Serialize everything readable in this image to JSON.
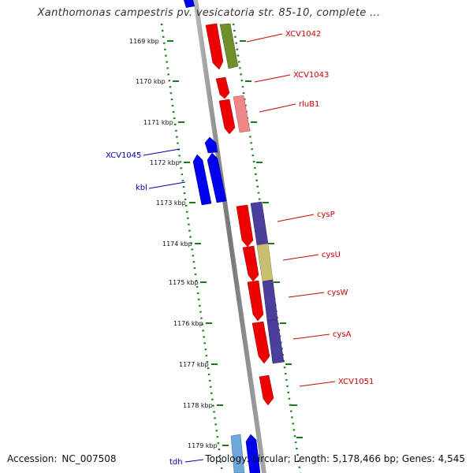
{
  "title": "Xanthomonas campestris pv. vesicatoria str. 85-10, complete ...",
  "footer": {
    "accession_key": "Accession:",
    "accession_value": "NC_007508",
    "topology_text": "Topology: circular; Length: 5,178,466 bp; Genes: 4,545"
  },
  "colors": {
    "forward_gene": "#ff0000",
    "reverse_gene": "#0000ff",
    "forward_label": "#cc0000",
    "reverse_label": "#0000aa",
    "axis": "#888888",
    "ticks": "#1a7a1a",
    "olive": "#6f8f2a",
    "pink": "#ee8888",
    "purple": "#4a3f9a",
    "khaki": "#c8c070"
  },
  "ticks": [
    "1169 kbp",
    "1170 kbp",
    "1171 kbp",
    "1172 kbp",
    "1173 kbp",
    "1174 kbp",
    "1175 kbp",
    "1176 kbp",
    "1177 kbp",
    "1178 kbp",
    "1179 kbp"
  ],
  "labels": [
    {
      "text": "XCV1042",
      "strand": "forward"
    },
    {
      "text": "XCV1043",
      "strand": "forward"
    },
    {
      "text": "rluB1",
      "strand": "forward"
    },
    {
      "text": "XCV1045",
      "strand": "reverse"
    },
    {
      "text": "kbl",
      "strand": "reverse"
    },
    {
      "text": "cysP",
      "strand": "forward"
    },
    {
      "text": "cysU",
      "strand": "forward"
    },
    {
      "text": "cysW",
      "strand": "forward"
    },
    {
      "text": "cysA",
      "strand": "forward"
    },
    {
      "text": "XCV1051",
      "strand": "forward"
    },
    {
      "text": "tdh",
      "strand": "reverse"
    }
  ]
}
